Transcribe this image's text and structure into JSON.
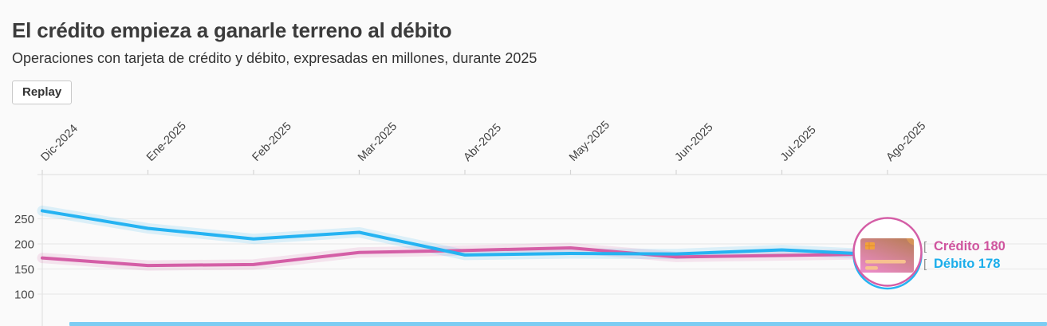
{
  "header": {
    "title": "El crédito empieza a ganarle terreno al débito",
    "subtitle": "Operaciones con tarjeta de crédito y débito, expresadas en millones, durante 2025",
    "replay_label": "Replay"
  },
  "chart_data": {
    "type": "line",
    "title": "El crédito empieza a ganarle terreno al débito",
    "subtitle": "Operaciones con tarjeta de crédito y débito, expresadas en millones, durante 2025",
    "categories": [
      "Dic-2024",
      "Ene-2025",
      "Feb-2025",
      "Mar-2025",
      "Abr-2025",
      "May-2025",
      "Jun-2025",
      "Jul-2025",
      "Ago-2025"
    ],
    "series": [
      {
        "name": "Crédito",
        "color": "#d45ea6",
        "band_color": "rgba(212,94,166,0.14)",
        "values": [
          172,
          157,
          159,
          183,
          187,
          192,
          174,
          177,
          180
        ]
      },
      {
        "name": "Débito",
        "color": "#25b3f2",
        "band_color": "rgba(37,179,242,0.14)",
        "values": [
          266,
          231,
          210,
          223,
          178,
          181,
          180,
          188,
          178
        ]
      }
    ],
    "y_ticks": [
      250,
      200,
      150,
      100
    ],
    "ylim": [
      36,
      338
    ],
    "grid": "horizontal",
    "legend_position": "end-of-line",
    "end_labels": [
      {
        "series": "Crédito",
        "label": "Crédito 180",
        "value": 180,
        "color": "#cf549e"
      },
      {
        "series": "Débito",
        "label": "Débito 178",
        "value": 178,
        "color": "#1badea"
      }
    ],
    "annotation": {
      "icon": "credit-card-badge"
    }
  },
  "progress_bar": {
    "color": "#7ccdf3",
    "value_percent": 100
  }
}
